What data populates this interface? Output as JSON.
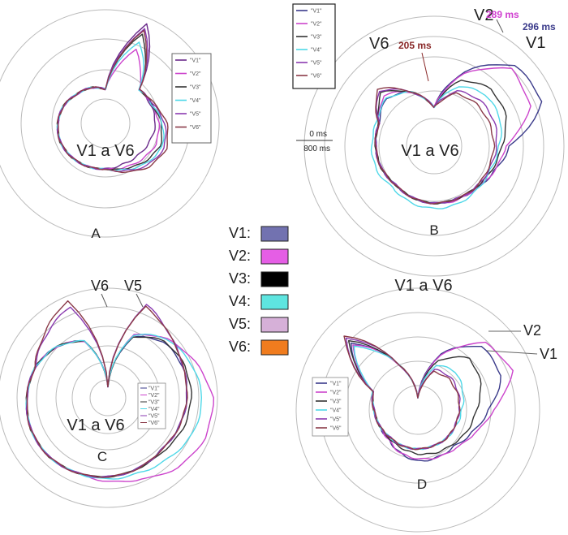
{
  "figure_legend": [
    {
      "label": "V1:",
      "color": "#7272b0"
    },
    {
      "label": "V2:",
      "color": "#e55ee5"
    },
    {
      "label": "V3:",
      "color": "#000000"
    },
    {
      "label": "V4:",
      "color": "#5ee5e0"
    },
    {
      "label": "V5:",
      "color": "#d6b0d8"
    },
    {
      "label": "V6:",
      "color": "#f07c1e"
    }
  ],
  "chart_data": [
    {
      "type": "polar-line",
      "panel": "A",
      "center_label": "V1 a V6",
      "legend": [
        "\"V1\"",
        "\"V2\"",
        "\"V3\"",
        "\"V4\"",
        "\"V5\"",
        "\"V6\""
      ],
      "series_colors": [
        "#6a2a8a",
        "#cc44cc",
        "#333333",
        "#4fd8e8",
        "#8a3ab0",
        "#8a3a48"
      ],
      "series": [
        {
          "name": "\"V1\"",
          "radii": [
            0.3,
            0.95,
            0.42,
            0.43,
            0.44,
            0.42,
            0.4,
            0.39,
            0.4,
            0.41,
            0.42,
            0.43,
            0.42,
            0.4,
            0.36,
            0.34
          ]
        },
        {
          "name": "\"V2\"",
          "radii": [
            0.3,
            0.7,
            0.42,
            0.44,
            0.47,
            0.48,
            0.45,
            0.42,
            0.4,
            0.41,
            0.42,
            0.43,
            0.42,
            0.4,
            0.36,
            0.34
          ]
        },
        {
          "name": "\"V3\"",
          "radii": [
            0.3,
            0.85,
            0.42,
            0.44,
            0.49,
            0.52,
            0.48,
            0.43,
            0.4,
            0.41,
            0.42,
            0.43,
            0.42,
            0.4,
            0.36,
            0.34
          ]
        },
        {
          "name": "\"V4\"",
          "radii": [
            0.3,
            0.78,
            0.42,
            0.44,
            0.5,
            0.54,
            0.5,
            0.44,
            0.4,
            0.41,
            0.42,
            0.43,
            0.42,
            0.4,
            0.36,
            0.34
          ]
        },
        {
          "name": "\"V5\"",
          "radii": [
            0.3,
            0.9,
            0.42,
            0.45,
            0.52,
            0.56,
            0.52,
            0.45,
            0.4,
            0.41,
            0.42,
            0.43,
            0.42,
            0.4,
            0.36,
            0.34
          ]
        },
        {
          "name": "\"V6\"",
          "radii": [
            0.3,
            0.88,
            0.42,
            0.46,
            0.54,
            0.58,
            0.54,
            0.46,
            0.4,
            0.41,
            0.42,
            0.43,
            0.42,
            0.4,
            0.36,
            0.34
          ]
        }
      ]
    },
    {
      "type": "polar-line",
      "panel": "B",
      "center_label": "V1 a V6",
      "time_labels": [
        "0 ms",
        "800 ms"
      ],
      "annotations": [
        {
          "text": "V2",
          "color": "#222"
        },
        {
          "text": "289 ms",
          "color": "#d040d0"
        },
        {
          "text": "296 ms",
          "color": "#3a3a8a"
        },
        {
          "text": "V1",
          "color": "#222"
        },
        {
          "text": "V6",
          "color": "#222"
        },
        {
          "text": "205 ms",
          "color": "#8a2a2a"
        }
      ],
      "legend": [
        "\"V1\"",
        "\"V2\"",
        "\"V3\"",
        "\"V4\"",
        "\"V5\"",
        "\"V6\""
      ],
      "series_colors": [
        "#3a3a8a",
        "#cc44cc",
        "#333333",
        "#4fd8e8",
        "#8a3ab0",
        "#8a3a48"
      ],
      "series": [
        {
          "name": "\"V1\"",
          "radii": [
            0.3,
            0.62,
            0.88,
            0.9,
            0.58,
            0.5,
            0.46,
            0.44,
            0.44,
            0.43,
            0.42,
            0.44,
            0.45,
            0.46,
            0.52,
            0.45
          ]
        },
        {
          "name": "\"V2\"",
          "radii": [
            0.3,
            0.6,
            0.84,
            0.8,
            0.55,
            0.5,
            0.46,
            0.45,
            0.44,
            0.43,
            0.42,
            0.44,
            0.45,
            0.46,
            0.55,
            0.45
          ]
        },
        {
          "name": "\"V3\"",
          "radii": [
            0.3,
            0.55,
            0.62,
            0.6,
            0.52,
            0.48,
            0.45,
            0.44,
            0.44,
            0.43,
            0.42,
            0.44,
            0.45,
            0.46,
            0.58,
            0.45
          ]
        },
        {
          "name": "\"V4\"",
          "radii": [
            0.3,
            0.5,
            0.56,
            0.55,
            0.5,
            0.47,
            0.47,
            0.48,
            0.48,
            0.47,
            0.45,
            0.48,
            0.48,
            0.48,
            0.52,
            0.45
          ]
        },
        {
          "name": "\"V5\"",
          "radii": [
            0.3,
            0.46,
            0.5,
            0.5,
            0.48,
            0.46,
            0.45,
            0.44,
            0.44,
            0.43,
            0.42,
            0.44,
            0.45,
            0.46,
            0.6,
            0.45
          ]
        },
        {
          "name": "\"V6\"",
          "radii": [
            0.3,
            0.44,
            0.46,
            0.46,
            0.46,
            0.45,
            0.45,
            0.44,
            0.44,
            0.43,
            0.42,
            0.44,
            0.45,
            0.46,
            0.62,
            0.45
          ]
        }
      ]
    },
    {
      "type": "polar-line",
      "panel": "C",
      "center_label": "V1 a V6",
      "annotations": [
        {
          "text": "V6",
          "color": "#222"
        },
        {
          "text": "V5",
          "color": "#222"
        }
      ],
      "legend": [
        "\"V1\"",
        "\"V2\"",
        "\"V3\"",
        "\"V4\"",
        "\"V5\"",
        "\"V6\""
      ],
      "series_colors": [
        "#3a3a8a",
        "#cc44cc",
        "#333333",
        "#4fd8e8",
        "#8a3ab0",
        "#8a3a48"
      ],
      "series": [
        {
          "name": "\"V1\"",
          "radii": [
            0.1,
            0.6,
            0.72,
            0.74,
            0.72,
            0.7,
            0.68,
            0.7,
            0.72,
            0.74,
            0.76,
            0.76,
            0.74,
            0.72,
            0.66,
            0.56
          ]
        },
        {
          "name": "\"V2\"",
          "radii": [
            0.1,
            0.62,
            0.76,
            0.86,
            0.96,
            0.96,
            0.9,
            0.8,
            0.76,
            0.74,
            0.76,
            0.76,
            0.74,
            0.72,
            0.66,
            0.56
          ]
        },
        {
          "name": "\"V3\"",
          "radii": [
            0.1,
            0.6,
            0.73,
            0.76,
            0.76,
            0.74,
            0.7,
            0.7,
            0.72,
            0.74,
            0.76,
            0.76,
            0.74,
            0.72,
            0.66,
            0.56
          ]
        },
        {
          "name": "\"V4\"",
          "radii": [
            0.1,
            0.62,
            0.76,
            0.82,
            0.86,
            0.84,
            0.78,
            0.74,
            0.74,
            0.74,
            0.76,
            0.76,
            0.74,
            0.72,
            0.66,
            0.56
          ]
        },
        {
          "name": "\"V5\"",
          "radii": [
            0.1,
            0.92,
            0.8,
            0.74,
            0.72,
            0.7,
            0.68,
            0.7,
            0.72,
            0.74,
            0.76,
            0.76,
            0.74,
            0.72,
            0.8,
            0.9
          ]
        },
        {
          "name": "\"V6\"",
          "radii": [
            0.1,
            0.9,
            0.8,
            0.74,
            0.72,
            0.7,
            0.68,
            0.7,
            0.72,
            0.74,
            0.76,
            0.76,
            0.74,
            0.72,
            0.82,
            0.96
          ]
        }
      ]
    },
    {
      "type": "polar-line",
      "panel": "D",
      "title": "V1 a V6",
      "annotations": [
        {
          "text": "V2",
          "color": "#222"
        },
        {
          "text": "V1",
          "color": "#222"
        }
      ],
      "legend": [
        "\"V1\"",
        "\"V2\"",
        "\"V3\"",
        "\"V4\"",
        "\"V5\"",
        "\"V6\""
      ],
      "series_colors": [
        "#3a3a8a",
        "#cc44cc",
        "#333333",
        "#4fd8e8",
        "#8a3ab0",
        "#8a3a48"
      ],
      "series": [
        {
          "name": "\"V1\"",
          "radii": [
            0.1,
            0.5,
            0.74,
            0.74,
            0.58,
            0.48,
            0.42,
            0.42,
            0.42,
            0.38,
            0.34,
            0.34,
            0.36,
            0.4,
            0.78,
            0.4
          ]
        },
        {
          "name": "\"V2\"",
          "radii": [
            0.1,
            0.48,
            0.78,
            0.84,
            0.62,
            0.5,
            0.44,
            0.42,
            0.4,
            0.38,
            0.34,
            0.34,
            0.36,
            0.4,
            0.76,
            0.4
          ]
        },
        {
          "name": "\"V3\"",
          "radii": [
            0.1,
            0.44,
            0.6,
            0.56,
            0.48,
            0.44,
            0.4,
            0.38,
            0.36,
            0.34,
            0.33,
            0.34,
            0.36,
            0.4,
            0.8,
            0.4
          ]
        },
        {
          "name": "\"V4\"",
          "radii": [
            0.1,
            0.4,
            0.44,
            0.4,
            0.36,
            0.34,
            0.33,
            0.32,
            0.32,
            0.32,
            0.32,
            0.34,
            0.36,
            0.4,
            0.74,
            0.4
          ]
        },
        {
          "name": "\"V5\"",
          "radii": [
            0.1,
            0.36,
            0.38,
            0.36,
            0.34,
            0.33,
            0.33,
            0.32,
            0.32,
            0.32,
            0.32,
            0.34,
            0.36,
            0.4,
            0.84,
            0.4
          ]
        },
        {
          "name": "\"V6\"",
          "radii": [
            0.1,
            0.34,
            0.36,
            0.35,
            0.34,
            0.33,
            0.33,
            0.32,
            0.32,
            0.32,
            0.32,
            0.34,
            0.36,
            0.4,
            0.86,
            0.4
          ]
        }
      ]
    }
  ],
  "panel_labels": [
    "A",
    "B",
    "C",
    "D"
  ]
}
